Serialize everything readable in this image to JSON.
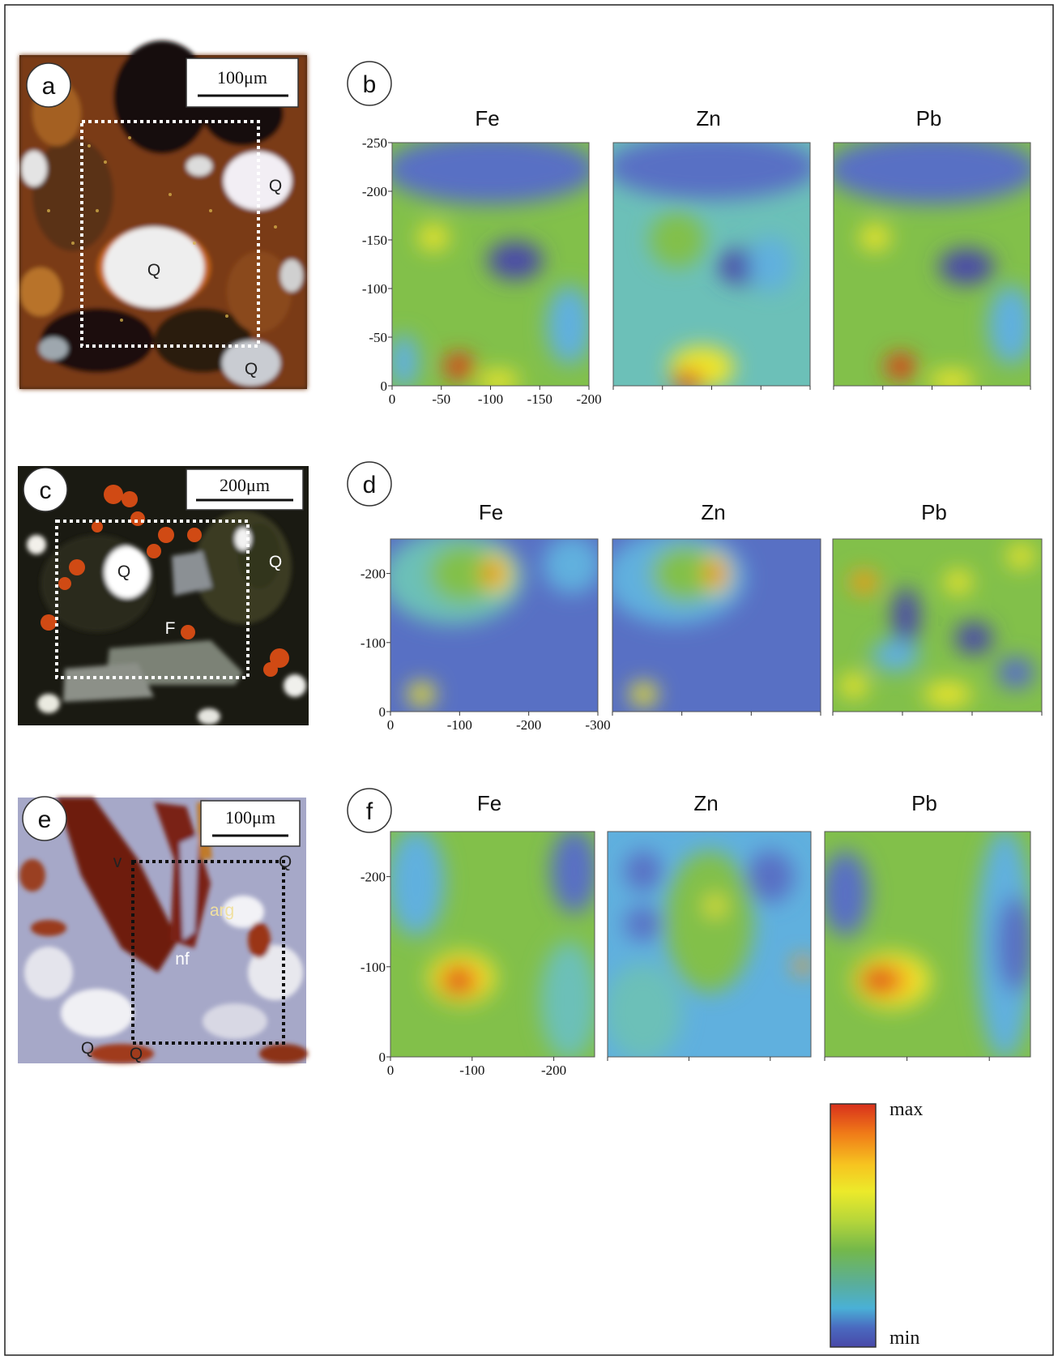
{
  "panels": {
    "a": {
      "letter": "a",
      "scale_bar": "100μm",
      "mineral_labels": [
        "Q",
        "Q",
        "Q"
      ]
    },
    "c": {
      "letter": "c",
      "scale_bar": "200μm",
      "mineral_labels": [
        "Q",
        "Q",
        "F"
      ]
    },
    "e": {
      "letter": "e",
      "scale_bar": "100μm",
      "mineral_labels": [
        "v",
        "Q",
        "arg",
        "nf",
        "Q",
        "Q"
      ]
    }
  },
  "colorbar": {
    "max_label": "max",
    "min_label": "min",
    "colors": [
      "#d8301c",
      "#f07a18",
      "#f6c420",
      "#ecea2a",
      "#b6d63a",
      "#74b84a",
      "#5aae9a",
      "#4ab0d6",
      "#4a6ac0",
      "#4848a8"
    ]
  },
  "chart_data": [
    {
      "panel": "b",
      "type": "heatmap",
      "elements": [
        "Fe",
        "Zn",
        "Pb"
      ],
      "xlim": [
        0,
        -200
      ],
      "ylim": [
        0,
        -250
      ],
      "xticks": [
        "0",
        "-50",
        "-100",
        "-150",
        "-200"
      ],
      "yticks": [
        "0",
        "-50",
        "-100",
        "-150",
        "-200",
        "-250"
      ],
      "grid": false
    },
    {
      "panel": "d",
      "type": "heatmap",
      "elements": [
        "Fe",
        "Zn",
        "Pb"
      ],
      "xlim": [
        0,
        -300
      ],
      "ylim": [
        0,
        -250
      ],
      "xticks": [
        "0",
        "-100",
        "-200",
        "-300"
      ],
      "yticks": [
        "0",
        "-100",
        "-200"
      ],
      "grid": false
    },
    {
      "panel": "f",
      "type": "heatmap",
      "elements": [
        "Fe",
        "Zn",
        "Pb"
      ],
      "xlim": [
        0,
        -250
      ],
      "ylim": [
        0,
        -250
      ],
      "xticks": [
        "0",
        "-100",
        "-200"
      ],
      "yticks": [
        "0",
        "-100",
        "-200"
      ],
      "grid": false
    }
  ]
}
